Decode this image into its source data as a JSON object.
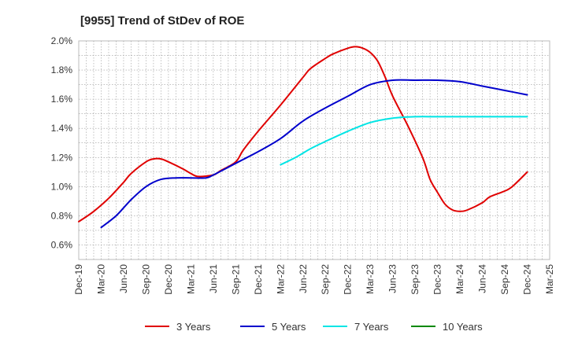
{
  "chart_data": {
    "type": "line",
    "title": "[9955]  Trend of StDev of ROE",
    "xlabel": "",
    "ylabel": "",
    "x_ticks": [
      "Dec-19",
      "Mar-20",
      "Jun-20",
      "Sep-20",
      "Dec-20",
      "Mar-21",
      "Jun-21",
      "Sep-21",
      "Dec-21",
      "Mar-22",
      "Jun-22",
      "Sep-22",
      "Dec-22",
      "Mar-23",
      "Jun-23",
      "Sep-23",
      "Dec-23",
      "Mar-24",
      "Jun-24",
      "Sep-24",
      "Dec-24",
      "Mar-25"
    ],
    "y_ticks": [
      "0.6%",
      "0.8%",
      "1.0%",
      "1.2%",
      "1.4%",
      "1.6%",
      "1.8%",
      "2.0%"
    ],
    "ylim": [
      0.5,
      2.0
    ],
    "grid": true,
    "legend_position": "bottom",
    "series": [
      {
        "name": "3 Years",
        "color": "#e00000",
        "points": [
          [
            "Dec-19",
            0.76
          ],
          [
            "Feb-20",
            0.83
          ],
          [
            "Apr-20",
            0.92
          ],
          [
            "Jun-20",
            1.03
          ],
          [
            "Jul-20",
            1.09
          ],
          [
            "Sep-20",
            1.17
          ],
          [
            "Oct-20",
            1.19
          ],
          [
            "Nov-20",
            1.19
          ],
          [
            "Dec-20",
            1.17
          ],
          [
            "Feb-21",
            1.12
          ],
          [
            "Mar-21",
            1.09
          ],
          [
            "Apr-21",
            1.07
          ],
          [
            "Jun-21",
            1.08
          ],
          [
            "Jul-21",
            1.11
          ],
          [
            "Sep-21",
            1.17
          ],
          [
            "Oct-21",
            1.25
          ],
          [
            "Dec-21",
            1.38
          ],
          [
            "Mar-22",
            1.56
          ],
          [
            "Jun-22",
            1.75
          ],
          [
            "Jul-22",
            1.81
          ],
          [
            "Sep-22",
            1.88
          ],
          [
            "Oct-22",
            1.91
          ],
          [
            "Dec-22",
            1.95
          ],
          [
            "Jan-23",
            1.96
          ],
          [
            "Feb-23",
            1.95
          ],
          [
            "Mar-23",
            1.92
          ],
          [
            "Apr-23",
            1.86
          ],
          [
            "May-23",
            1.75
          ],
          [
            "Jun-23",
            1.62
          ],
          [
            "Aug-23",
            1.42
          ],
          [
            "Oct-23",
            1.2
          ],
          [
            "Nov-23",
            1.05
          ],
          [
            "Dec-23",
            0.96
          ],
          [
            "Jan-24",
            0.88
          ],
          [
            "Feb-24",
            0.84
          ],
          [
            "Mar-24",
            0.83
          ],
          [
            "Apr-24",
            0.84
          ],
          [
            "Jun-24",
            0.89
          ],
          [
            "Jul-24",
            0.93
          ],
          [
            "Sep-24",
            0.97
          ],
          [
            "Oct-24",
            1.0
          ],
          [
            "Dec-24",
            1.1
          ]
        ]
      },
      {
        "name": "5 Years",
        "color": "#0000cc",
        "points": [
          [
            "Mar-20",
            0.72
          ],
          [
            "May-20",
            0.8
          ],
          [
            "Jul-20",
            0.91
          ],
          [
            "Sep-20",
            1.0
          ],
          [
            "Nov-20",
            1.05
          ],
          [
            "Jan-21",
            1.06
          ],
          [
            "Mar-21",
            1.06
          ],
          [
            "May-21",
            1.06
          ],
          [
            "Jun-21",
            1.08
          ],
          [
            "Sep-21",
            1.16
          ],
          [
            "Dec-21",
            1.24
          ],
          [
            "Mar-22",
            1.33
          ],
          [
            "Jun-22",
            1.45
          ],
          [
            "Sep-22",
            1.54
          ],
          [
            "Dec-22",
            1.62
          ],
          [
            "Mar-23",
            1.7
          ],
          [
            "Jun-23",
            1.73
          ],
          [
            "Sep-23",
            1.73
          ],
          [
            "Dec-23",
            1.73
          ],
          [
            "Mar-24",
            1.72
          ],
          [
            "Jun-24",
            1.69
          ],
          [
            "Sep-24",
            1.66
          ],
          [
            "Dec-24",
            1.63
          ]
        ]
      },
      {
        "name": "7 Years",
        "color": "#00e5e5",
        "points": [
          [
            "Mar-22",
            1.15
          ],
          [
            "May-22",
            1.2
          ],
          [
            "Jul-22",
            1.26
          ],
          [
            "Sep-22",
            1.31
          ],
          [
            "Dec-22",
            1.38
          ],
          [
            "Mar-23",
            1.44
          ],
          [
            "Jun-23",
            1.47
          ],
          [
            "Sep-23",
            1.48
          ],
          [
            "Dec-23",
            1.48
          ],
          [
            "Mar-24",
            1.48
          ],
          [
            "Jun-24",
            1.48
          ],
          [
            "Sep-24",
            1.48
          ],
          [
            "Dec-24",
            1.48
          ]
        ]
      },
      {
        "name": "10 Years",
        "color": "#008800",
        "points": []
      }
    ]
  }
}
